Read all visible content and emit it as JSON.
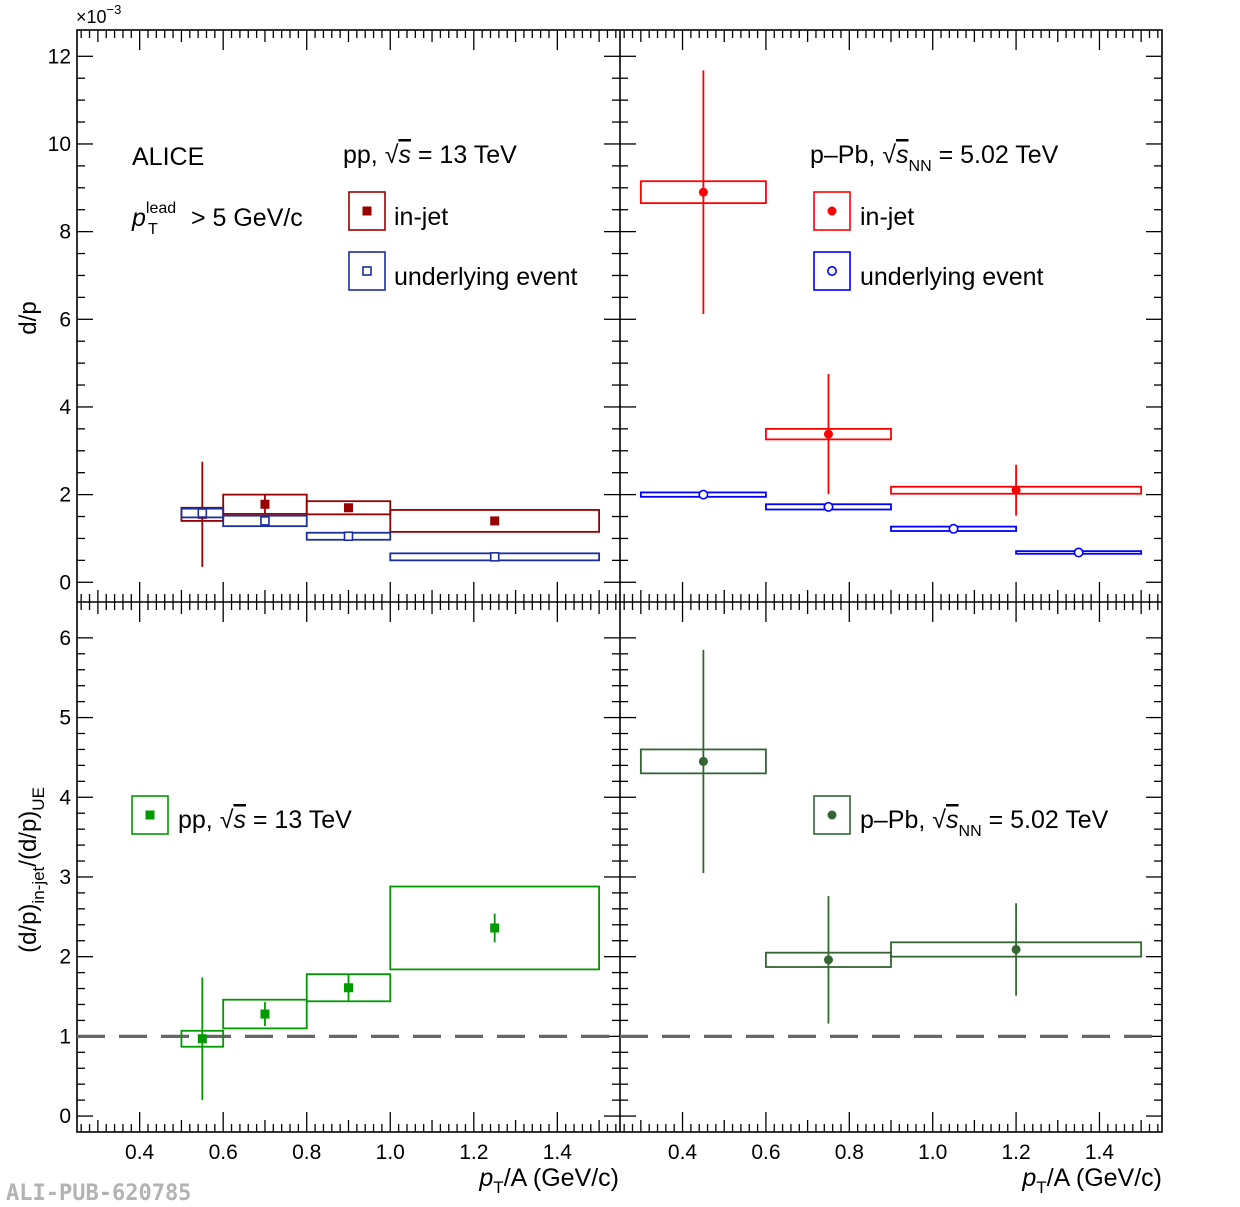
{
  "watermark": "ALI-PUB-620785",
  "x_axis": {
    "range": [
      0.25,
      1.55
    ],
    "tick_labels": [
      "0.4",
      "0.6",
      "0.8",
      "1.0",
      "1.2",
      "1.4"
    ],
    "label_main": "p",
    "label_sub": "T",
    "label_rest": "/A (GeV/c)"
  },
  "top_axis": {
    "range": [
      -0.45,
      12.6
    ],
    "tick_labels": [
      "0",
      "2",
      "4",
      "6",
      "8",
      "10",
      "12"
    ],
    "exponent": "×10",
    "exponent_power": "−3",
    "ylabel": "d/p"
  },
  "bottom_axis": {
    "range": [
      -0.2,
      6.45
    ],
    "tick_labels": [
      "0",
      "1",
      "2",
      "3",
      "4",
      "5",
      "6"
    ],
    "ylabel_main": "(d/p)",
    "ylabel_sub1": "in-jet",
    "ylabel_mid": "/(d/p)",
    "ylabel_sub2": "UE"
  },
  "legend_text": {
    "alice": "ALICE",
    "pt_main": "p",
    "pt_sup": "lead",
    "pt_sub": "T",
    "pt_rest": " > 5 GeV/c",
    "pp_sys": "pp, ",
    "pp_s": "s",
    "pp_energy": " = 13 TeV",
    "ppb_sys": "p–Pb, ",
    "ppb_s": "s",
    "ppb_sub": "NN",
    "ppb_energy": " = 5.02 TeV",
    "in_jet": "in-jet",
    "ue": "underlying event"
  },
  "colors": {
    "pp_injet": "#990000",
    "pp_ue": "#1a2f9e",
    "ppb_injet": "#ff0000",
    "ppb_ue": "#0000ff",
    "pp_ratio": "#009900",
    "ppb_ratio": "#336633",
    "unity_line": "#666666"
  },
  "chart_data": [
    {
      "panel": "top-left",
      "type": "scatter",
      "system": "pp, sqrt(s) = 13 TeV",
      "xlabel": "pT/A (GeV/c)",
      "ylabel": "d/p (x10^-3)",
      "ylim": [
        -0.45,
        12.6
      ],
      "series": [
        {
          "name": "in-jet",
          "marker": "filled-square",
          "x": [
            0.55,
            0.7,
            0.9,
            1.25
          ],
          "bins": [
            [
              0.5,
              0.6
            ],
            [
              0.6,
              0.8
            ],
            [
              0.8,
              1.0
            ],
            [
              1.0,
              1.5
            ]
          ],
          "y": [
            1.55,
            1.78,
            1.7,
            1.4
          ],
          "stat": [
            1.2,
            0.2,
            0.1,
            0.05
          ],
          "sys": [
            0.15,
            0.22,
            0.15,
            0.25
          ]
        },
        {
          "name": "underlying event",
          "marker": "open-square",
          "x": [
            0.55,
            0.7,
            0.9,
            1.25
          ],
          "bins": [
            [
              0.5,
              0.6
            ],
            [
              0.6,
              0.8
            ],
            [
              0.8,
              1.0
            ],
            [
              1.0,
              1.5
            ]
          ],
          "y": [
            1.58,
            1.4,
            1.05,
            0.58
          ],
          "stat": [
            0.02,
            0.02,
            0.02,
            0.02
          ],
          "sys": [
            0.1,
            0.12,
            0.08,
            0.08
          ]
        }
      ]
    },
    {
      "panel": "top-right",
      "type": "scatter",
      "system": "p-Pb, sqrt(sNN) = 5.02 TeV",
      "xlabel": "pT/A (GeV/c)",
      "ylabel": "d/p (x10^-3)",
      "ylim": [
        -0.45,
        12.6
      ],
      "series": [
        {
          "name": "in-jet",
          "marker": "filled-circle",
          "x": [
            0.45,
            0.75,
            1.2
          ],
          "bins": [
            [
              0.3,
              0.6
            ],
            [
              0.6,
              0.9
            ],
            [
              0.9,
              1.5
            ]
          ],
          "y": [
            8.9,
            3.38,
            2.1
          ],
          "stat": [
            2.78,
            1.37,
            0.58
          ],
          "sys": [
            0.25,
            0.12,
            0.08
          ]
        },
        {
          "name": "underlying event",
          "marker": "open-circle",
          "x": [
            0.45,
            0.75,
            1.05,
            1.35
          ],
          "bins": [
            [
              0.3,
              0.6
            ],
            [
              0.6,
              0.9
            ],
            [
              0.9,
              1.2
            ],
            [
              1.2,
              1.5
            ]
          ],
          "y": [
            2.0,
            1.72,
            1.22,
            0.68
          ],
          "stat": [
            0.01,
            0.01,
            0.01,
            0.01
          ],
          "sys": [
            0.05,
            0.06,
            0.05,
            0.03
          ]
        }
      ]
    },
    {
      "panel": "bottom-left",
      "type": "scatter",
      "system": "pp, sqrt(s) = 13 TeV",
      "xlabel": "pT/A (GeV/c)",
      "ylabel": "(d/p)in-jet/(d/p)UE",
      "ylim": [
        -0.2,
        6.45
      ],
      "reference_line": 1,
      "series": [
        {
          "name": "pp, sqrt(s) = 13 TeV",
          "marker": "filled-square",
          "x": [
            0.55,
            0.7,
            0.9,
            1.25
          ],
          "bins": [
            [
              0.5,
              0.6
            ],
            [
              0.6,
              0.8
            ],
            [
              0.8,
              1.0
            ],
            [
              1.0,
              1.5
            ]
          ],
          "y": [
            0.97,
            1.28,
            1.61,
            2.36
          ],
          "stat": [
            0.77,
            0.15,
            0.17,
            0.18
          ],
          "sys": [
            0.1,
            0.18,
            0.17,
            0.52
          ]
        }
      ]
    },
    {
      "panel": "bottom-right",
      "type": "scatter",
      "system": "p-Pb, sqrt(sNN) = 5.02 TeV",
      "xlabel": "pT/A (GeV/c)",
      "ylabel": "(d/p)in-jet/(d/p)UE",
      "ylim": [
        -0.2,
        6.45
      ],
      "reference_line": 1,
      "series": [
        {
          "name": "p-Pb, sqrt(sNN) = 5.02 TeV",
          "marker": "filled-circle",
          "x": [
            0.45,
            0.75,
            1.2
          ],
          "bins": [
            [
              0.3,
              0.6
            ],
            [
              0.6,
              0.9
            ],
            [
              0.9,
              1.5
            ]
          ],
          "y": [
            4.45,
            1.96,
            2.09
          ],
          "stat": [
            1.4,
            0.8,
            0.58
          ],
          "sys": [
            0.15,
            0.09,
            0.09
          ]
        }
      ]
    }
  ]
}
